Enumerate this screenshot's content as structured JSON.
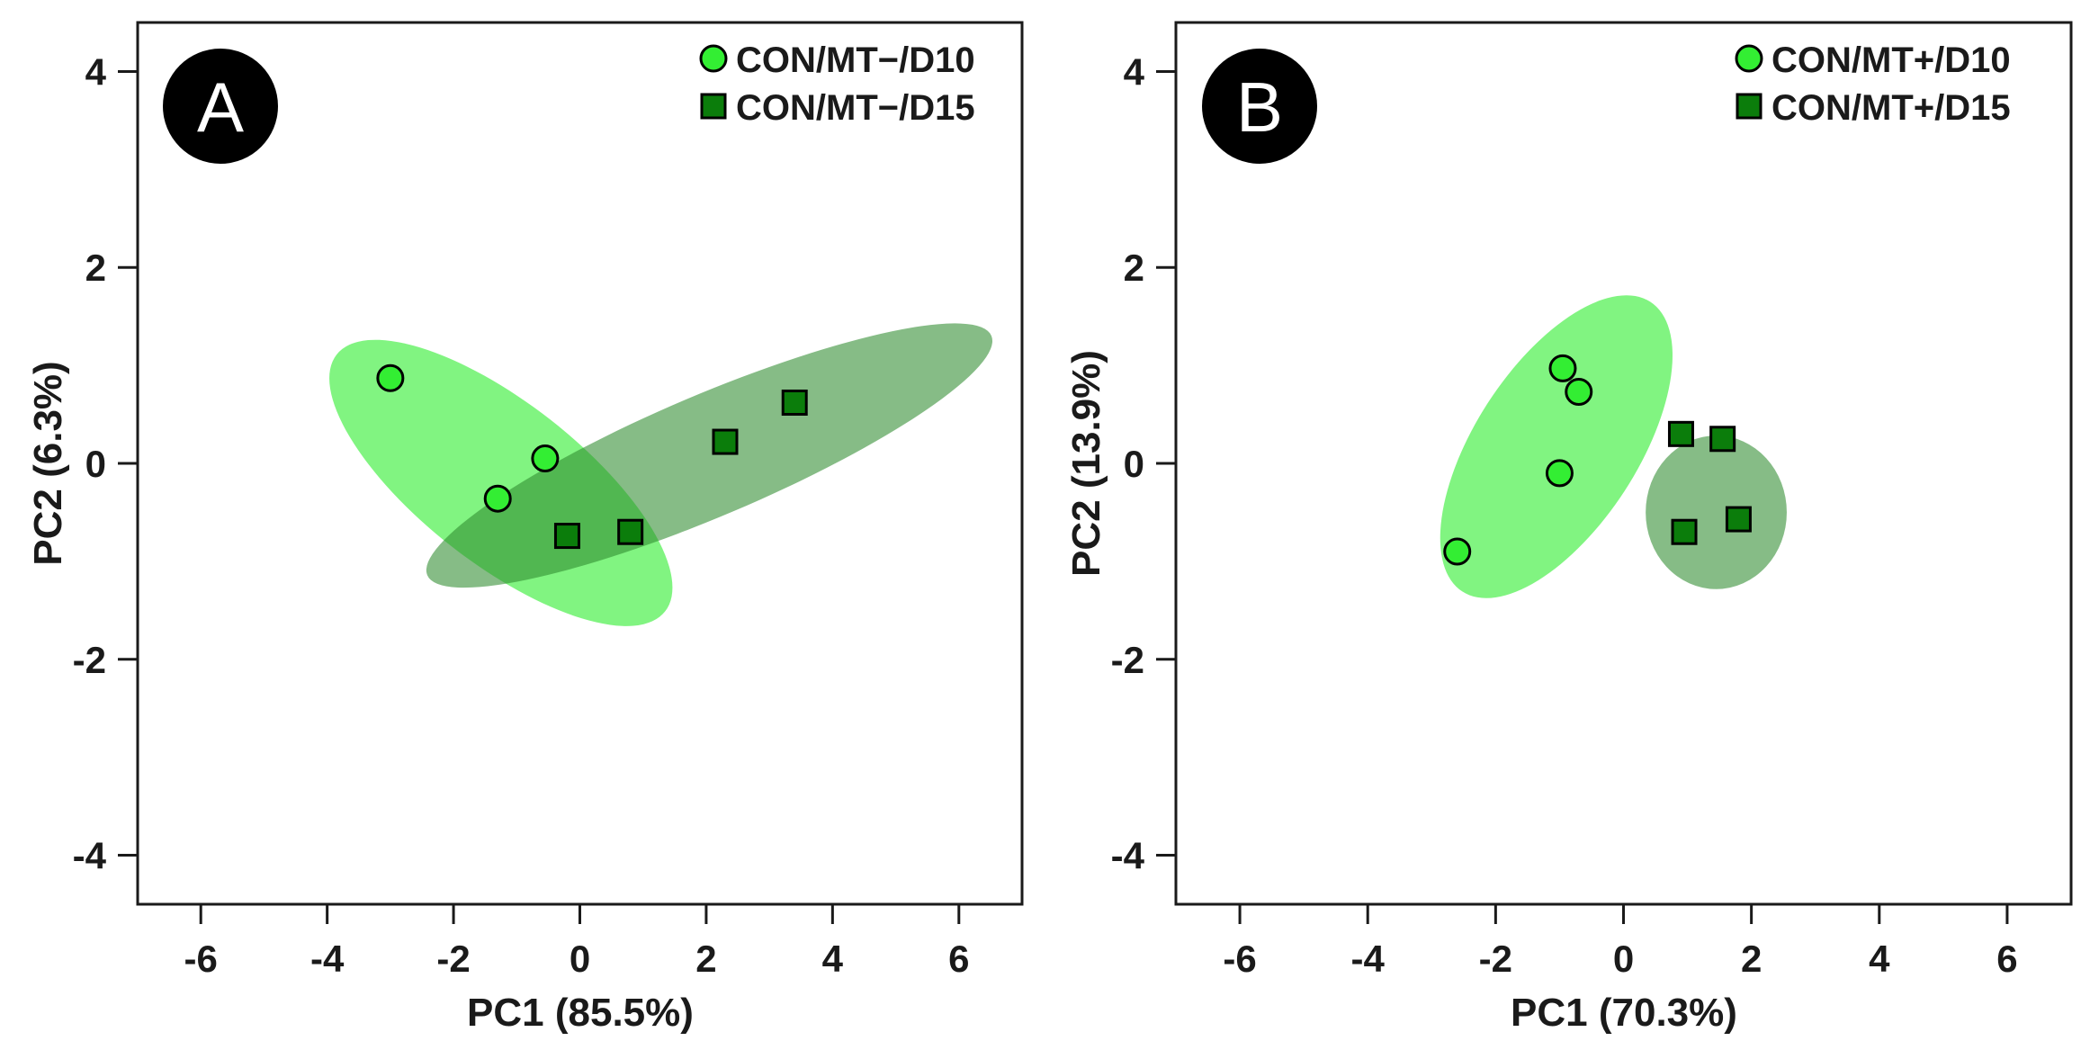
{
  "chart_data": [
    {
      "type": "scatter",
      "panel_label": "A",
      "xlabel": "PC1 (85.5%)",
      "ylabel": "PC2 (6.3%)",
      "xlim": [
        -7,
        7
      ],
      "ylim": [
        -4.5,
        4.5
      ],
      "xticks": [
        -6,
        -4,
        -2,
        0,
        2,
        4,
        6
      ],
      "yticks": [
        -4,
        -2,
        0,
        2,
        4
      ],
      "legend_position": "top-right",
      "series": [
        {
          "name": "CON/MT−/D10",
          "marker": "circle",
          "color": "#33ee33",
          "ellipse_color": "#33ee33",
          "ellipse": {
            "cx": -1.25,
            "cy": -0.2,
            "rx": 3.3,
            "ry": 0.82,
            "angle_deg": -38
          },
          "points": [
            {
              "x": -3.0,
              "y": 0.87
            },
            {
              "x": -1.3,
              "y": -0.36
            },
            {
              "x": -0.55,
              "y": 0.05
            }
          ]
        },
        {
          "name": "CON/MT−/D15",
          "marker": "square",
          "color": "#0b7d0b",
          "ellipse_color": "#2e8b2e",
          "ellipse": {
            "cx": 2.05,
            "cy": 0.08,
            "rx": 4.85,
            "ry": 0.62,
            "angle_deg": 23
          },
          "points": [
            {
              "x": -0.2,
              "y": -0.74
            },
            {
              "x": 0.8,
              "y": -0.7
            },
            {
              "x": 2.3,
              "y": 0.22
            },
            {
              "x": 3.4,
              "y": 0.62
            }
          ]
        }
      ]
    },
    {
      "type": "scatter",
      "panel_label": "B",
      "xlabel": "PC1 (70.3%)",
      "ylabel": "PC2 (13.9%)",
      "xlim": [
        -7,
        7
      ],
      "ylim": [
        -4.5,
        4.5
      ],
      "xticks": [
        -6,
        -4,
        -2,
        0,
        2,
        4,
        6
      ],
      "yticks": [
        -4,
        -2,
        0,
        2,
        4
      ],
      "legend_position": "top-right",
      "series": [
        {
          "name": "CON/MT+/D10",
          "marker": "circle",
          "color": "#33ee33",
          "ellipse_color": "#33ee33",
          "ellipse": {
            "cx": -1.05,
            "cy": 0.17,
            "rx": 2.7,
            "ry": 0.83,
            "angle_deg": 57
          },
          "points": [
            {
              "x": -2.6,
              "y": -0.9
            },
            {
              "x": -1.0,
              "y": -0.1
            },
            {
              "x": -0.95,
              "y": 0.97
            },
            {
              "x": -0.7,
              "y": 0.73
            }
          ]
        },
        {
          "name": "CON/MT+/D15",
          "marker": "square",
          "color": "#0b7d0b",
          "ellipse_color": "#2e8b2e",
          "ellipse": {
            "cx": 1.45,
            "cy": -0.5,
            "rx": 1.2,
            "ry": 0.72,
            "angle_deg": 90
          },
          "points": [
            {
              "x": 0.9,
              "y": 0.3
            },
            {
              "x": 1.55,
              "y": 0.25
            },
            {
              "x": 0.95,
              "y": -0.7
            },
            {
              "x": 1.8,
              "y": -0.57
            }
          ]
        }
      ]
    }
  ]
}
